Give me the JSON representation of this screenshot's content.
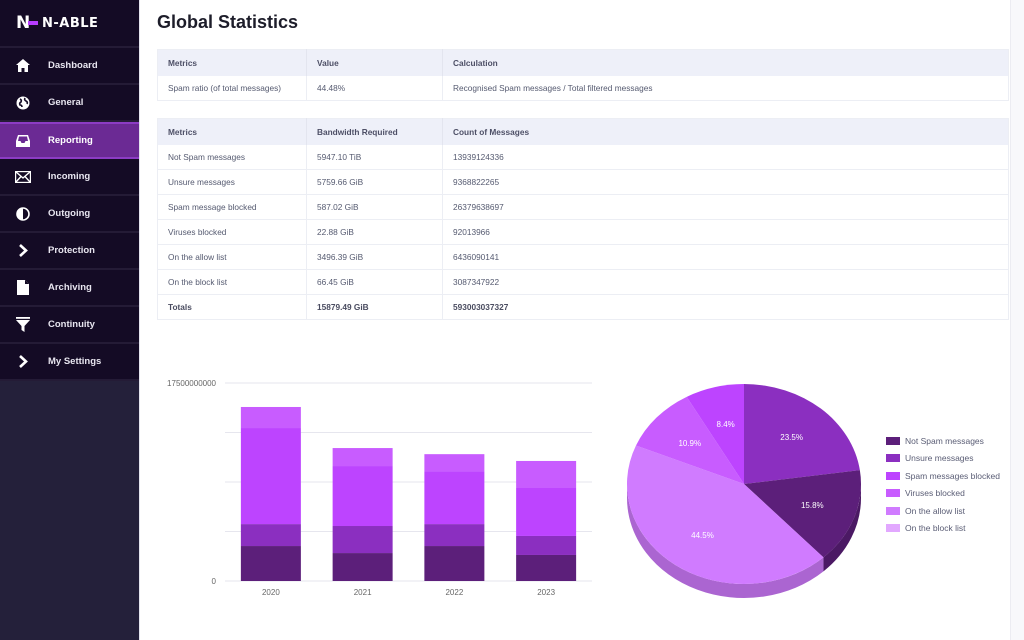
{
  "app": {
    "brand": "N-ABLE"
  },
  "sidebar": {
    "items": [
      {
        "label": "Dashboard",
        "icon": "home-icon"
      },
      {
        "label": "General",
        "icon": "globe-icon"
      },
      {
        "label": "Reporting",
        "icon": "inbox-icon",
        "active": true
      },
      {
        "label": "Incoming",
        "icon": "envelope-icon"
      },
      {
        "label": "Outgoing",
        "icon": "half-circle-icon"
      },
      {
        "label": "Protection",
        "icon": "chevron-right-icon"
      },
      {
        "label": "Archiving",
        "icon": "file-icon"
      },
      {
        "label": "Continuity",
        "icon": "filter-icon"
      },
      {
        "label": "My Settings",
        "icon": "chevron-right-icon"
      }
    ]
  },
  "page": {
    "title": "Global Statistics"
  },
  "ratio_table": {
    "headers": [
      "Metrics",
      "Value",
      "Calculation"
    ],
    "rows": [
      [
        "Spam ratio (of total messages)",
        "44.48%",
        "Recognised Spam messages / Total filtered messages"
      ]
    ]
  },
  "stats_table": {
    "headers": [
      "Metrics",
      "Bandwidth Required",
      "Count of Messages"
    ],
    "rows": [
      [
        "Not Spam messages",
        "5947.10 TiB",
        "13939124336"
      ],
      [
        "Unsure messages",
        "5759.66 GiB",
        "9368822265"
      ],
      [
        "Spam message blocked",
        "587.02 GiB",
        "26379638697"
      ],
      [
        "Viruses blocked",
        "22.88 GiB",
        "92013966"
      ],
      [
        "On the allow list",
        "3496.39 GiB",
        "6436090141"
      ],
      [
        "On the block list",
        "66.45 GiB",
        "3087347922"
      ]
    ],
    "totals": [
      "Totals",
      "15879.49 GiB",
      "593003037327"
    ]
  },
  "colors": {
    "not_spam": "#5c1f7a",
    "unsure": "#8b2fc0",
    "spam_blocked": "#bd44ff",
    "viruses": "#c85cff",
    "allow_list": "#d07bff",
    "block_list": "#e2a8ff"
  },
  "chart_data": [
    {
      "type": "bar",
      "stacked": true,
      "categories": [
        "2020",
        "2021",
        "2022",
        "2023"
      ],
      "ylim": [
        0,
        17500000000
      ],
      "yticks_labeled": [
        "0",
        "17500000000"
      ],
      "gridlines": 5,
      "series": [
        {
          "name": "Not Spam messages",
          "color": "#5c1f7a",
          "values": [
            3090000000,
            2470000000,
            3090000000,
            2300000000
          ]
        },
        {
          "name": "Unsure messages",
          "color": "#8b2fc0",
          "values": [
            1940000000,
            2390000000,
            1940000000,
            1680000000
          ]
        },
        {
          "name": "Spam messages blocked",
          "color": "#bd44ff",
          "values": [
            8490000000,
            5300000000,
            4680000000,
            4240000000
          ]
        },
        {
          "name": "Viruses blocked",
          "color": "#c85cff",
          "values": [
            1860000000,
            1590000000,
            1500000000,
            2390000000
          ]
        }
      ],
      "title": "",
      "xlabel": "",
      "ylabel": ""
    },
    {
      "type": "pie",
      "style": "3d",
      "slices": [
        {
          "name": "Unsure messages",
          "value": 23.5,
          "label": "23.5%",
          "color": "#8b2fc0"
        },
        {
          "name": "Not Spam messages",
          "value": 15.8,
          "label": "15.8%",
          "color": "#5c1f7a"
        },
        {
          "name": "On the allow list",
          "value": 44.5,
          "label": "44.5%",
          "color": "#d07bff"
        },
        {
          "name": "Viruses blocked",
          "value": 10.9,
          "label": "10.9%",
          "color": "#c85cff"
        },
        {
          "name": "Spam messages blocked",
          "value": 8.4,
          "label": "8.4%",
          "color": "#bd44ff"
        }
      ],
      "legend": {
        "position": "right",
        "entries": [
          {
            "label": "Not Spam messages",
            "color": "#5c1f7a"
          },
          {
            "label": "Unsure messages",
            "color": "#8b2fc0"
          },
          {
            "label": "Spam messages blocked",
            "color": "#bd44ff"
          },
          {
            "label": "Viruses blocked",
            "color": "#c85cff"
          },
          {
            "label": "On the allow list",
            "color": "#d07bff"
          },
          {
            "label": "On the block list",
            "color": "#e2a8ff"
          }
        ]
      }
    }
  ]
}
